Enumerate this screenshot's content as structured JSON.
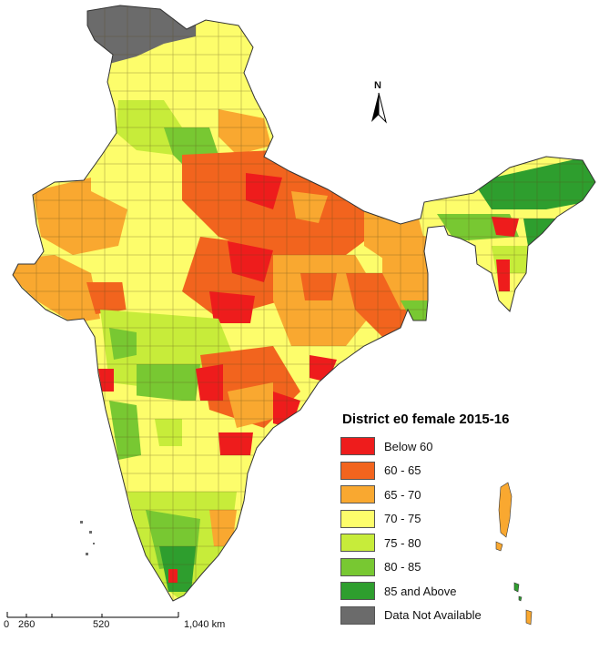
{
  "legend": {
    "title": "District e0 female 2015-16",
    "items": [
      {
        "label": "Below  60",
        "color": "#ee1c1c"
      },
      {
        "label": "60 - 65",
        "color": "#f2641e"
      },
      {
        "label": "65 - 70",
        "color": "#f9a830"
      },
      {
        "label": "70 - 75",
        "color": "#fdfd6b"
      },
      {
        "label": "75 - 80",
        "color": "#c7ec3a"
      },
      {
        "label": "80 - 85",
        "color": "#78c832"
      },
      {
        "label": "85 and Above",
        "color": "#2e9e2e"
      },
      {
        "label": "Data Not Available",
        "color": "#6b6b6b"
      }
    ]
  },
  "north_arrow": {
    "label": "N"
  },
  "scale_bar": {
    "ticks": [
      "0",
      "260",
      "520",
      "1,040 km"
    ]
  }
}
